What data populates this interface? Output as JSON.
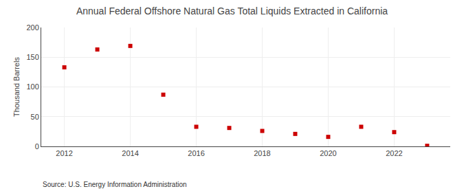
{
  "chart_data": {
    "type": "scatter",
    "title": "Annual Federal Offshore Natural Gas Total Liquids Extracted in California",
    "ylabel": "Thousand Barrels",
    "annotation": "Source: U.S. Energy Information Administration",
    "x": [
      2012,
      2013,
      2014,
      2015,
      2016,
      2017,
      2018,
      2019,
      2020,
      2021,
      2022,
      2023
    ],
    "values": [
      133,
      163,
      169,
      87,
      33,
      31,
      26,
      21,
      16,
      33,
      24,
      1
    ],
    "color": "#cc0000",
    "marker": "square",
    "xlim": [
      2011.3,
      2023.7
    ],
    "xticks": [
      2012,
      2014,
      2016,
      2018,
      2020,
      2022
    ],
    "ylim": [
      0,
      200
    ],
    "yticks": [
      0,
      50,
      100,
      150,
      200
    ],
    "grid": true
  }
}
